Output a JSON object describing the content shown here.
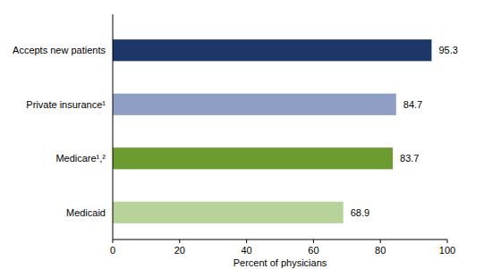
{
  "chart_data": {
    "type": "bar",
    "orientation": "horizontal",
    "categories": [
      "Accepts new patients",
      "Private insurance¹",
      "Medicare¹,²",
      "Medicaid"
    ],
    "values": [
      95.3,
      84.7,
      83.7,
      68.9
    ],
    "colors": [
      "#1c3768",
      "#8e9ec4",
      "#6c9b2f",
      "#b7d39a"
    ],
    "x_label": "Percent of physicians",
    "xlim": [
      0,
      100
    ],
    "xticks": [
      0,
      20,
      40,
      60,
      80,
      100
    ],
    "grid": false,
    "data_labels": true
  }
}
